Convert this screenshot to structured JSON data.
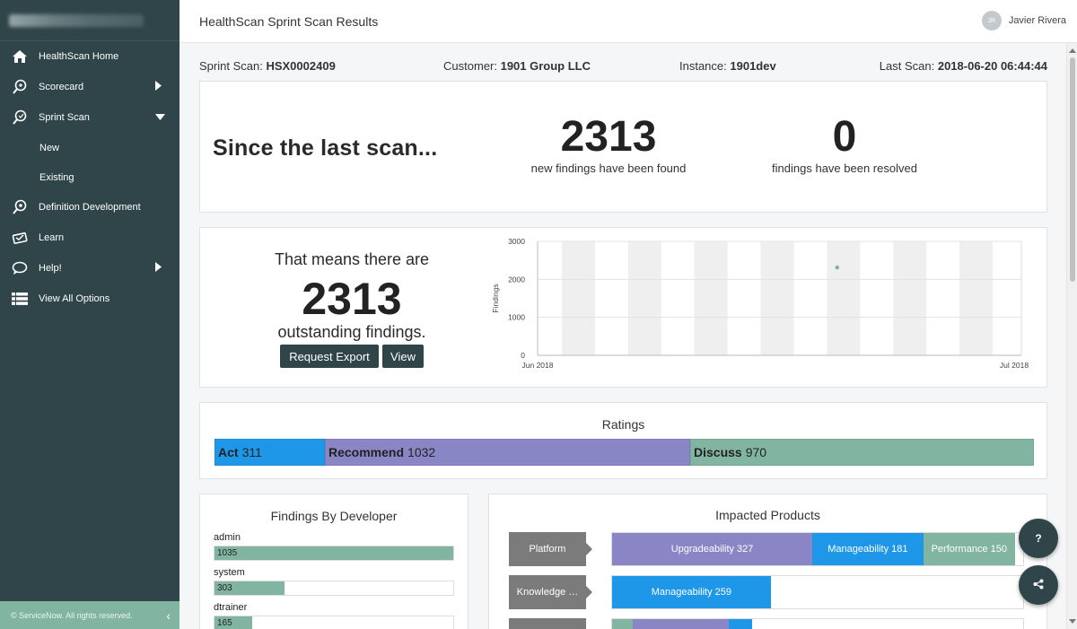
{
  "sidebar": {
    "items": [
      {
        "label": "HealthScan Home",
        "icon": "home-icon"
      },
      {
        "label": "Scorecard",
        "icon": "scorecard-icon",
        "caret": "right"
      },
      {
        "label": "Sprint Scan",
        "icon": "sprint-scan-icon",
        "caret": "down"
      },
      {
        "label": "New"
      },
      {
        "label": "Existing"
      },
      {
        "label": "Definition Development",
        "icon": "definition-icon"
      },
      {
        "label": "Learn",
        "icon": "learn-icon"
      },
      {
        "label": "Help!",
        "icon": "chat-bubble-icon",
        "caret": "right"
      },
      {
        "label": "View All Options",
        "icon": "list-icon"
      }
    ],
    "footer": "© ServiceNow. All rights reserved.",
    "collapse_glyph": "‹"
  },
  "header": {
    "title": "HealthScan Sprint Scan Results",
    "user_initials": "JR",
    "user_name": "Javier Rivera"
  },
  "info": {
    "sprint_label": "Sprint Scan:",
    "sprint_value": "HSX0002409",
    "customer_label": "Customer:",
    "customer_value": "1901 Group LLC",
    "instance_label": "Instance:",
    "instance_value": "1901dev",
    "lastscan_label": "Last Scan:",
    "lastscan_value": "2018-06-20 06:44:44"
  },
  "summary": {
    "since": "Since the last scan...",
    "new_count": "2313",
    "new_caption": "new findings have been found",
    "resolved_count": "0",
    "resolved_caption": "findings have been resolved"
  },
  "outstanding": {
    "line1": "That means there are",
    "count": "2313",
    "line2": "outstanding findings.",
    "export_button": "Request Export",
    "view_button": "View"
  },
  "chart_data": {
    "type": "scatter",
    "ylabel": "Findings",
    "ylim": [
      0,
      3000
    ],
    "yticks": [
      "0",
      "1000",
      "2000",
      "3000"
    ],
    "xticks": [
      "Jun 2018",
      "Jul 2018"
    ],
    "xdomain_days": 30,
    "points": [
      {
        "day": 19,
        "value": 2313
      }
    ],
    "stripe_color": "#efefef",
    "point_color": "#81b5a1"
  },
  "ratings": {
    "title": "Ratings",
    "segments": [
      {
        "name": "Act",
        "value": 311,
        "color": "#1e97e8"
      },
      {
        "name": "Recommend",
        "value": 1032,
        "color": "#8a86c6"
      },
      {
        "name": "Discuss",
        "value": 970,
        "color": "#81b5a1"
      }
    ]
  },
  "developers": {
    "title": "Findings By Developer",
    "max": 1035,
    "items": [
      {
        "name": "admin",
        "count": 1035
      },
      {
        "name": "system",
        "count": 303
      },
      {
        "name": "dtrainer",
        "count": 165
      }
    ]
  },
  "products": {
    "title": "Impacted Products",
    "max": 658,
    "rows": [
      {
        "name": "Platform",
        "segments": [
          {
            "label": "Upgradeability 327",
            "value": 327,
            "color": "#8a86c6"
          },
          {
            "label": "Manageability 181",
            "value": 181,
            "color": "#1e97e8"
          },
          {
            "label": "Performance 150",
            "value": 150,
            "color": "#81b5a1"
          }
        ]
      },
      {
        "name": "Knowledge …",
        "segments": [
          {
            "label": "Manageability 259",
            "value": 259,
            "color": "#1e97e8"
          }
        ]
      },
      {
        "name": "",
        "segments": [
          {
            "label": "",
            "value": 33,
            "color": "#81b5a1"
          },
          {
            "label": "",
            "value": 158,
            "color": "#8a86c6"
          },
          {
            "label": "",
            "value": 38,
            "color": "#1e97e8"
          }
        ]
      }
    ]
  },
  "fab": {
    "help": "?",
    "share_icon": "share-icon"
  },
  "colors": {
    "sidebar": "#2f4549",
    "accent_green": "#81b5a1",
    "accent_blue": "#1e97e8",
    "accent_purple": "#8a86c6"
  }
}
